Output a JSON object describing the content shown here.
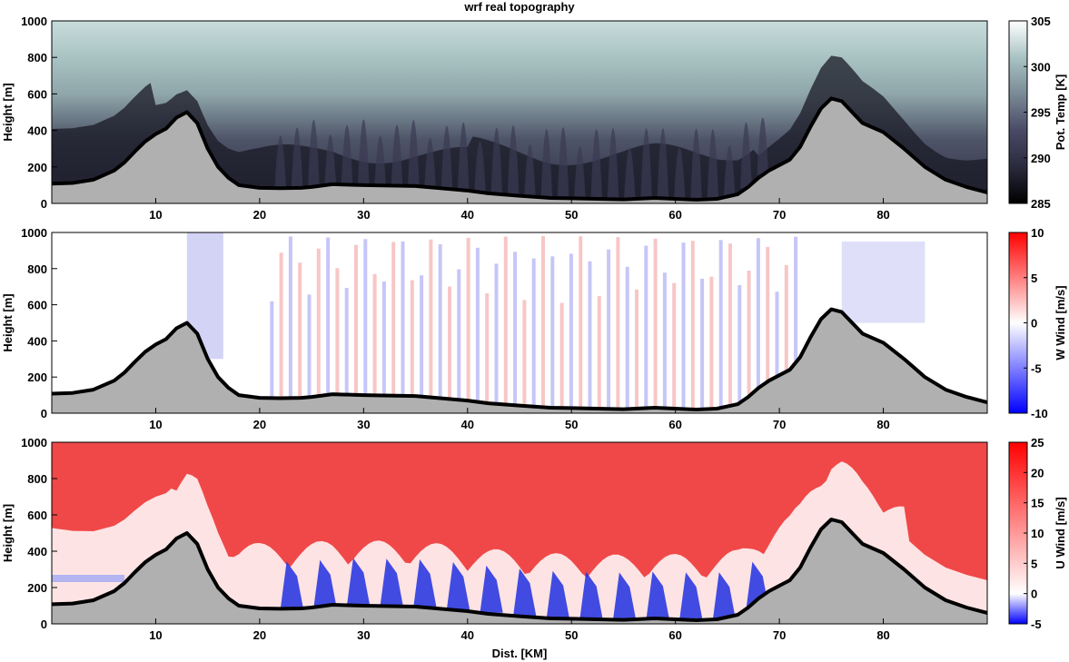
{
  "figure_title": "wrf real topography",
  "xlabel": "Dist. [KM]",
  "chart_data": [
    {
      "type": "heatmap",
      "title": "wrf real topography",
      "variable": "potential temperature",
      "ylabel": "Height [m]",
      "colorbar_label": "Pot. Temp [K]",
      "colormap": "bone",
      "colors": [
        "#000000",
        "#2a2a3e",
        "#4a4a66",
        "#7a8a96",
        "#a9c3c3",
        "#ffffff"
      ],
      "clim": [
        285,
        305
      ],
      "colorbar_ticks": [
        285,
        290,
        295,
        300,
        305
      ],
      "xlim": [
        0,
        90
      ],
      "ylim": [
        0,
        1000
      ],
      "xticks": [
        10,
        20,
        30,
        40,
        50,
        60,
        70,
        80
      ],
      "yticks": [
        0,
        200,
        400,
        600,
        800,
        1000
      ]
    },
    {
      "type": "heatmap",
      "variable": "vertical wind",
      "ylabel": "Height [m]",
      "colorbar_label": "W Wind [m/s]",
      "colormap": "blue-white-red",
      "colors": [
        "#0000ff",
        "#ffffff",
        "#ff0000"
      ],
      "clim": [
        -10,
        10
      ],
      "colorbar_ticks": [
        -10,
        -5,
        0,
        5,
        10
      ],
      "xlim": [
        0,
        90
      ],
      "ylim": [
        0,
        1000
      ],
      "xticks": [
        10,
        20,
        30,
        40,
        50,
        60,
        70,
        80
      ],
      "yticks": [
        0,
        200,
        400,
        600,
        800,
        1000
      ]
    },
    {
      "type": "heatmap",
      "variable": "horizontal wind",
      "ylabel": "Height [m]",
      "xlabel": "Dist. [KM]",
      "colorbar_label": "U Wind [m/s]",
      "colormap": "blue-white-red",
      "colors": [
        "#0000ff",
        "#ffffff",
        "#ff0000"
      ],
      "clim": [
        -5,
        25
      ],
      "colorbar_ticks": [
        -5,
        0,
        5,
        10,
        15,
        20,
        25
      ],
      "xlim": [
        0,
        90
      ],
      "ylim": [
        0,
        1000
      ],
      "xticks": [
        10,
        20,
        30,
        40,
        50,
        60,
        70,
        80
      ],
      "yticks": [
        0,
        200,
        400,
        600,
        800,
        1000
      ]
    }
  ],
  "terrain": {
    "fill_color": "#b0b0b0",
    "line_color": "#000000",
    "x": [
      0,
      2,
      4,
      6,
      7,
      8,
      9,
      10,
      11,
      12,
      13,
      14,
      15,
      16,
      17,
      18,
      20,
      22,
      24,
      25,
      27,
      30,
      35,
      38,
      40,
      42,
      45,
      48,
      50,
      55,
      58,
      60,
      62,
      64,
      66,
      67,
      68,
      69,
      70,
      71,
      72,
      73,
      74,
      75,
      76,
      77,
      78,
      80,
      82,
      84,
      86,
      88,
      90
    ],
    "y": [
      108,
      112,
      130,
      180,
      225,
      285,
      340,
      380,
      410,
      470,
      500,
      440,
      300,
      200,
      140,
      100,
      85,
      83,
      85,
      90,
      105,
      100,
      95,
      80,
      70,
      55,
      42,
      30,
      28,
      22,
      30,
      25,
      20,
      25,
      50,
      90,
      140,
      180,
      210,
      240,
      310,
      420,
      520,
      575,
      560,
      500,
      440,
      390,
      300,
      200,
      130,
      90,
      60
    ]
  }
}
